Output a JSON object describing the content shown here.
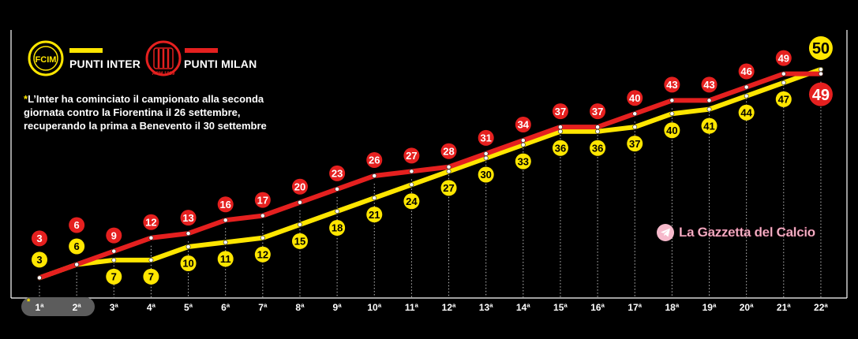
{
  "legend": {
    "inter_label": "PUNTI INTER",
    "milan_label": "PUNTI MILAN",
    "inter_logo_text": "FCIM",
    "milan_logo_text": "ACM 1899"
  },
  "note": {
    "star": "*",
    "text": "L’Inter ha cominciato il campionato alla seconda giornata contro la Fiorentina il 26 settembre, recuperando la prima a Benevento il 30 settembre"
  },
  "watermark": "La Gazzetta del Calcio",
  "colors": {
    "inter": "#ffe600",
    "milan": "#e5201f",
    "background": "#000000",
    "axis_pill": "#5c5c5c"
  },
  "chart_data": {
    "type": "line",
    "title": "",
    "xlabel": "",
    "ylabel": "",
    "categories": [
      "1ª",
      "2ª",
      "3ª",
      "4ª",
      "5ª",
      "6ª",
      "7ª",
      "8ª",
      "9ª",
      "10ª",
      "11ª",
      "12ª",
      "13ª",
      "14ª",
      "15ª",
      "16ª",
      "17ª",
      "18ª",
      "19ª",
      "20ª",
      "21ª",
      "22ª"
    ],
    "highlighted_categories": [
      "1ª",
      "2ª"
    ],
    "highlight_marker": "*",
    "ylim": [
      0,
      52
    ],
    "grid": "vertical dotted",
    "legend_position": "top-left",
    "series": [
      {
        "name": "PUNTI INTER",
        "color": "#ffe600",
        "values": [
          3,
          6,
          7,
          7,
          10,
          11,
          12,
          15,
          18,
          21,
          24,
          27,
          30,
          33,
          36,
          36,
          37,
          40,
          41,
          44,
          47,
          50
        ]
      },
      {
        "name": "PUNTI MILAN",
        "color": "#e5201f",
        "values": [
          3,
          6,
          9,
          12,
          13,
          16,
          17,
          20,
          23,
          26,
          27,
          28,
          31,
          34,
          37,
          37,
          40,
          43,
          43,
          46,
          49,
          49
        ]
      }
    ]
  }
}
